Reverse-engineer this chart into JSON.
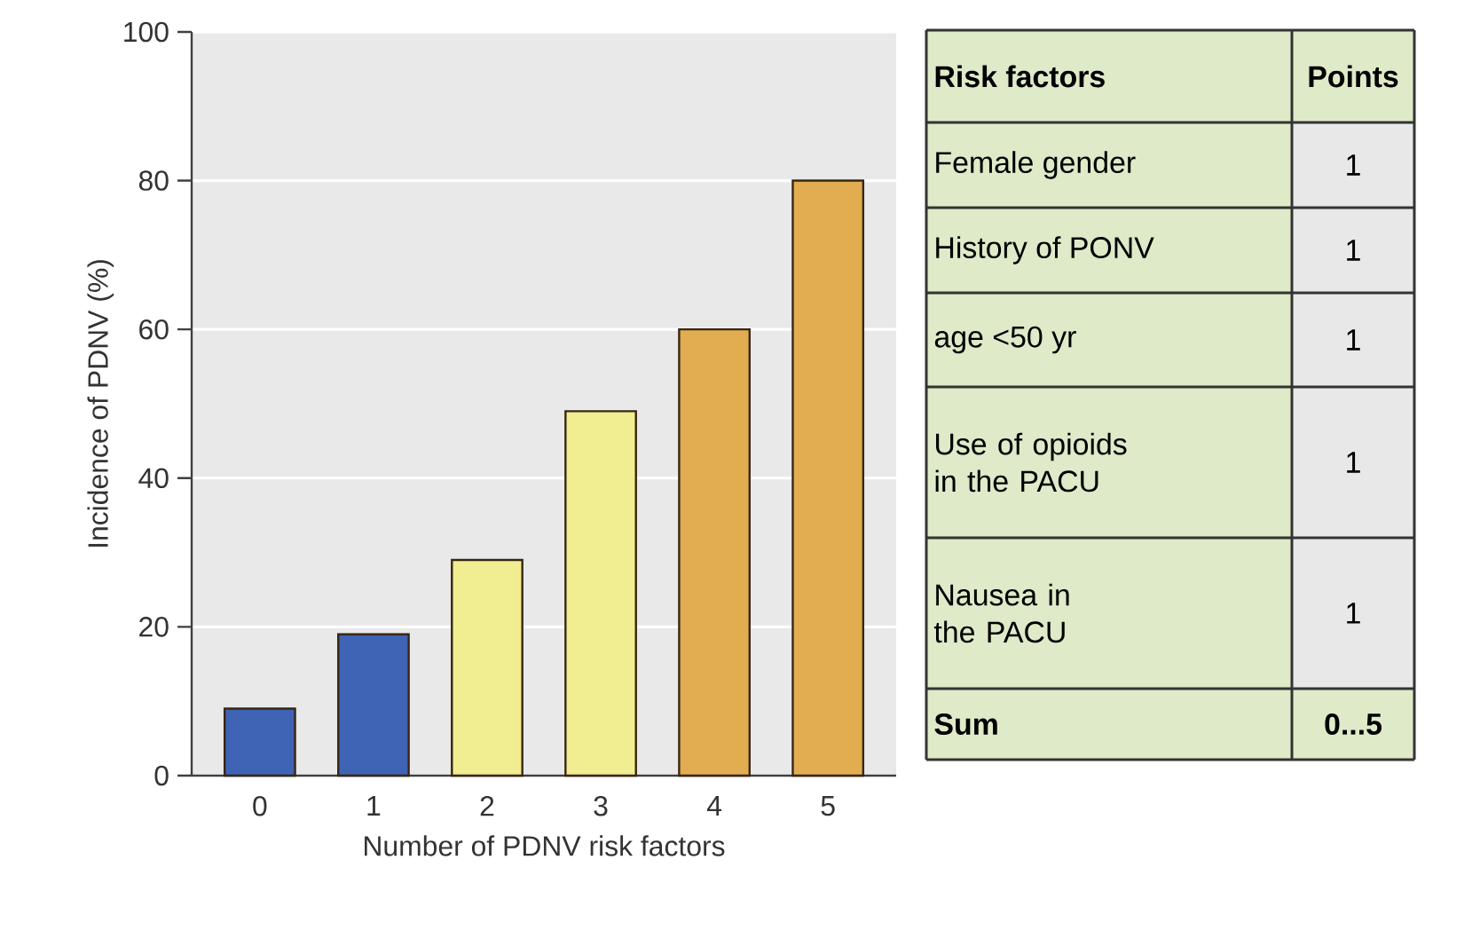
{
  "chart_data": [
    {
      "type": "bar",
      "xlabel": "Number of PDNV risk factors",
      "ylabel": "Incidence of PDNV (%)",
      "categories": [
        "0",
        "1",
        "2",
        "3",
        "4",
        "5"
      ],
      "values": [
        9,
        19,
        29,
        49,
        60,
        80
      ],
      "colors": [
        "#3f63b5",
        "#3f63b5",
        "#f0ee90",
        "#f0ee90",
        "#e2ad50",
        "#e2ad50"
      ],
      "ylim": [
        0,
        100
      ],
      "yticks": [
        0,
        20,
        40,
        60,
        80,
        100
      ],
      "grid": "y"
    },
    {
      "type": "other",
      "categories": [
        "Female gender",
        "History of PONV",
        "age <50 yr",
        "Use of opioids in the PACU",
        "Nausea in the PACU"
      ],
      "values": [
        1,
        1,
        1,
        1,
        1
      ],
      "data_labels": true,
      "annotations": [
        "Risk factors",
        "Points",
        "Sum",
        "0...5"
      ]
    }
  ]
}
